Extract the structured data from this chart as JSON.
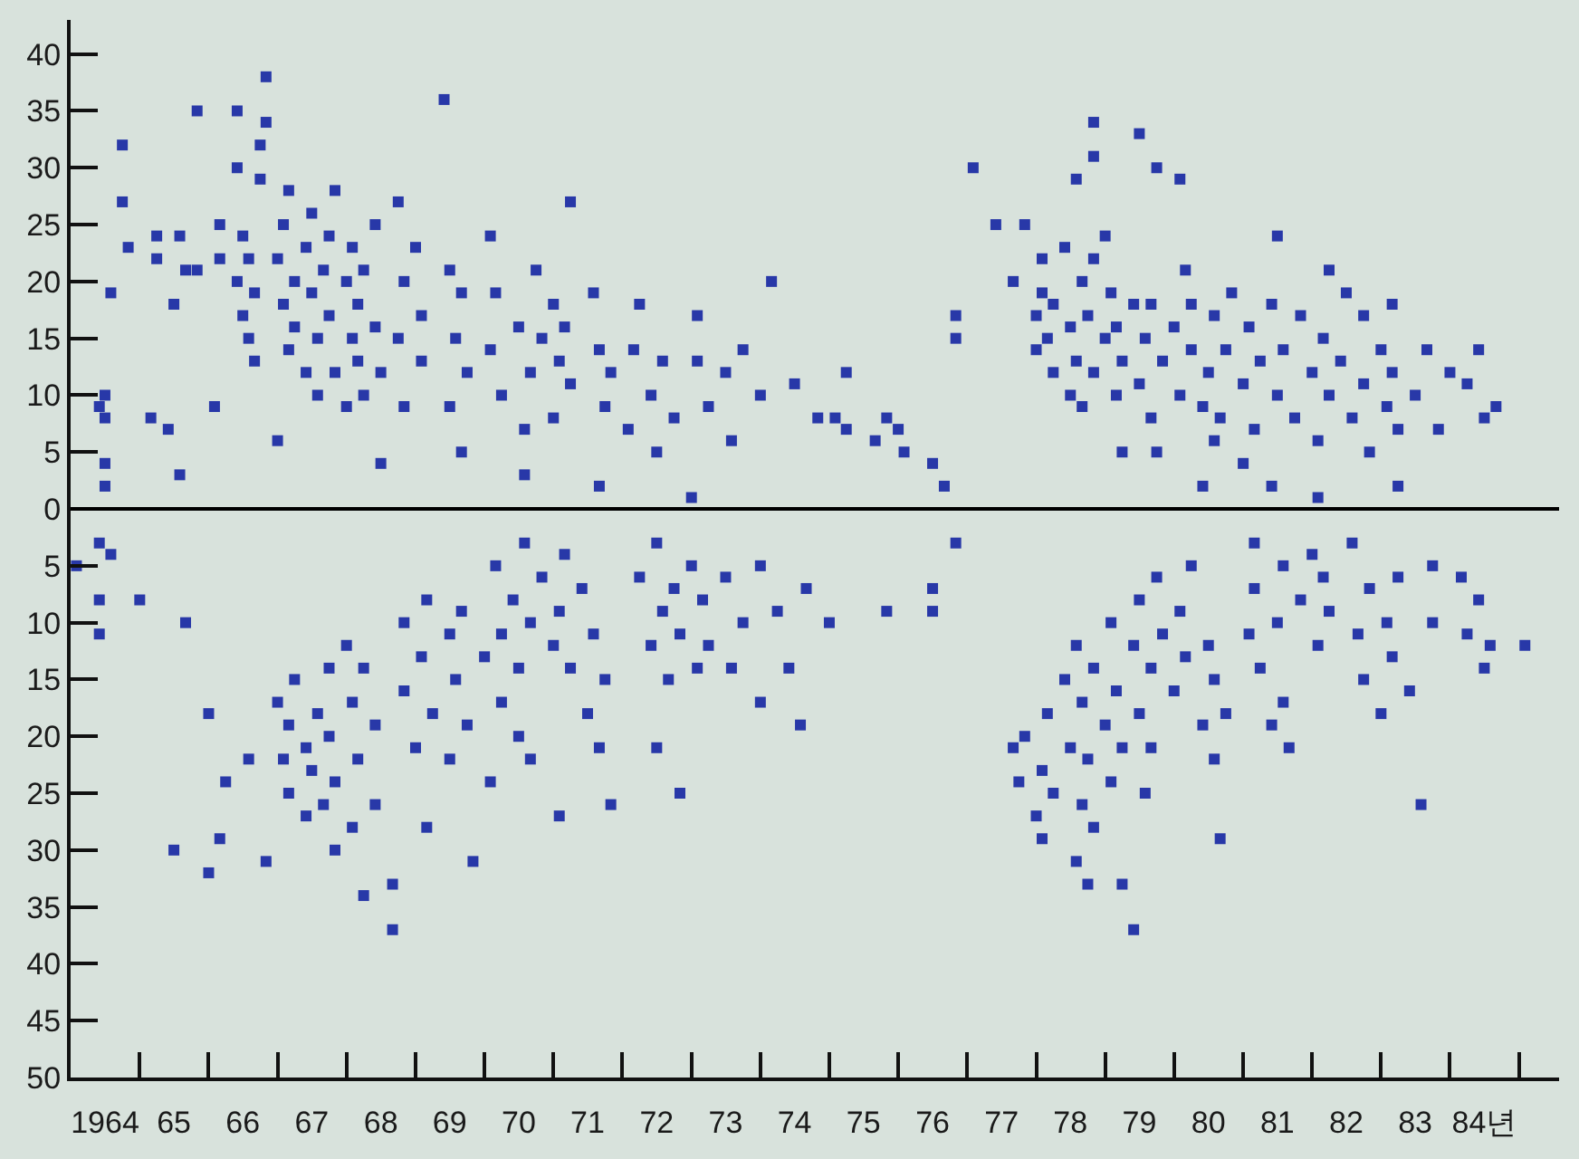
{
  "chart_data": {
    "type": "scatter",
    "marker": "square",
    "xlim": [
      "1964",
      "1985-08"
    ],
    "xticks": [
      {
        "value": "1964-07",
        "label": "1964"
      },
      {
        "value": "1965",
        "label": null
      },
      {
        "value": "1965-07",
        "label": "65"
      },
      {
        "value": "1966",
        "label": null
      },
      {
        "value": "1966-07",
        "label": "66"
      },
      {
        "value": "1967",
        "label": null
      },
      {
        "value": "1967-07",
        "label": "67"
      },
      {
        "value": "1968",
        "label": null
      },
      {
        "value": "1968-07",
        "label": "68"
      },
      {
        "value": "1969",
        "label": null
      },
      {
        "value": "1969-07",
        "label": "69"
      },
      {
        "value": "1970",
        "label": null
      },
      {
        "value": "1970-07",
        "label": "70"
      },
      {
        "value": "1971",
        "label": null
      },
      {
        "value": "1971-07",
        "label": "71"
      },
      {
        "value": "1972",
        "label": null
      },
      {
        "value": "1972-07",
        "label": "72"
      },
      {
        "value": "1973",
        "label": null
      },
      {
        "value": "1973-07",
        "label": "73"
      },
      {
        "value": "1974",
        "label": null
      },
      {
        "value": "1974-07",
        "label": "74"
      },
      {
        "value": "1975",
        "label": null
      },
      {
        "value": "1975-07",
        "label": "75"
      },
      {
        "value": "1976",
        "label": null
      },
      {
        "value": "1976-07",
        "label": "76"
      },
      {
        "value": "1977",
        "label": null
      },
      {
        "value": "1977-07",
        "label": "77"
      },
      {
        "value": "1978",
        "label": null
      },
      {
        "value": "1978-07",
        "label": "78"
      },
      {
        "value": "1979",
        "label": null
      },
      {
        "value": "1979-07",
        "label": "79"
      },
      {
        "value": "1980",
        "label": null
      },
      {
        "value": "1980-07",
        "label": "80"
      },
      {
        "value": "1981",
        "label": null
      },
      {
        "value": "1981-07",
        "label": "81"
      },
      {
        "value": "1982",
        "label": null
      },
      {
        "value": "1982-07",
        "label": "82"
      },
      {
        "value": "1983",
        "label": null
      },
      {
        "value": "1983-07",
        "label": "83"
      },
      {
        "value": "1984",
        "label": null
      },
      {
        "value": "1984-07",
        "label": "84년"
      },
      {
        "value": "1985",
        "label": null
      }
    ],
    "ylim": [
      -50,
      43
    ],
    "yticks": [
      40,
      35,
      30,
      25,
      20,
      15,
      10,
      5,
      0,
      {
        "value": -5,
        "label": "5"
      },
      {
        "value": -10,
        "label": "10"
      },
      {
        "value": -15,
        "label": "15"
      },
      {
        "value": -20,
        "label": "20"
      },
      {
        "value": -25,
        "label": "25"
      },
      {
        "value": -30,
        "label": "30"
      },
      {
        "value": -35,
        "label": "35"
      },
      {
        "value": -40,
        "label": "40"
      },
      {
        "value": -45,
        "label": "45"
      },
      {
        "value": -50,
        "label": "50"
      }
    ],
    "ref_lines": [
      {
        "axis": "y",
        "value": 0,
        "color": "#000000"
      }
    ],
    "series": [
      {
        "color": "#2838a8",
        "x": [
          "1964-06",
          "1964-07",
          "1964-07",
          "1964-07",
          "1964-07",
          "1964-08",
          "1964-10",
          "1964-10",
          "1964-11",
          "1965-03",
          "1965-04",
          "1965-04",
          "1965-06",
          "1965-07",
          "1965-08",
          "1965-08",
          "1965-09",
          "1965-11",
          "1965-11",
          "1966-02",
          "1966-03",
          "1966-03",
          "1966-06",
          "1966-06",
          "1966-06",
          "1966-07",
          "1966-07",
          "1966-08",
          "1966-08",
          "1966-09",
          "1966-09",
          "1966-10",
          "1966-10",
          "1966-11",
          "1966-11",
          "1967-01",
          "1967-01",
          "1967-02",
          "1967-02",
          "1967-03",
          "1967-03",
          "1967-04",
          "1967-04",
          "1967-06",
          "1967-06",
          "1967-07",
          "1967-07",
          "1967-08",
          "1967-08",
          "1967-09",
          "1967-10",
          "1967-10",
          "1967-11",
          "1967-11",
          "1968-01",
          "1968-01",
          "1968-02",
          "1968-02",
          "1968-03",
          "1968-03",
          "1968-04",
          "1968-04",
          "1968-06",
          "1968-06",
          "1968-07",
          "1968-07",
          "1968-10",
          "1968-10",
          "1968-11",
          "1968-11",
          "1969-01",
          "1969-02",
          "1969-02",
          "1969-06",
          "1969-07",
          "1969-07",
          "1969-08",
          "1969-09",
          "1969-09",
          "1969-10",
          "1970-02",
          "1970-02",
          "1970-03",
          "1970-04",
          "1970-07",
          "1970-08",
          "1970-08",
          "1970-09",
          "1970-10",
          "1970-11",
          "1971-01",
          "1971-01",
          "1971-02",
          "1971-03",
          "1971-04",
          "1971-04",
          "1971-08",
          "1971-09",
          "1971-09",
          "1971-10",
          "1971-11",
          "1972-02",
          "1972-03",
          "1972-04",
          "1972-06",
          "1972-07",
          "1972-08",
          "1972-10",
          "1973-01",
          "1973-02",
          "1973-02",
          "1973-04",
          "1973-07",
          "1973-08",
          "1973-10",
          "1974-01",
          "1974-03",
          "1974-07",
          "1974-11",
          "1975-02",
          "1975-04",
          "1975-04",
          "1975-09",
          "1975-11",
          "1976-01",
          "1976-02",
          "1976-07",
          "1976-09"
        ],
        "values": [
          9,
          8,
          10,
          2,
          4,
          19,
          27,
          32,
          23,
          8,
          22,
          24,
          7,
          18,
          3,
          24,
          21,
          35,
          21,
          9,
          22,
          25,
          30,
          35,
          20,
          17,
          24,
          22,
          15,
          19,
          13,
          32,
          29,
          34,
          38,
          6,
          22,
          18,
          25,
          14,
          28,
          20,
          16,
          12,
          23,
          19,
          26,
          10,
          15,
          21,
          24,
          17,
          28,
          12,
          20,
          9,
          15,
          23,
          18,
          13,
          21,
          10,
          25,
          16,
          4,
          12,
          27,
          15,
          20,
          9,
          23,
          17,
          13,
          36,
          21,
          9,
          15,
          5,
          19,
          12,
          24,
          14,
          19,
          10,
          16,
          7,
          3,
          12,
          21,
          15,
          18,
          8,
          13,
          16,
          27,
          11,
          19,
          14,
          2,
          9,
          12,
          7,
          14,
          18,
          10,
          5,
          13,
          8,
          1,
          17,
          13,
          9,
          12,
          6,
          14,
          10,
          20,
          11,
          8,
          8,
          7,
          12,
          6,
          8,
          7,
          5,
          4,
          2
        ]
      },
      {
        "color": "#2838a8",
        "x": [
          "1964-02",
          "1964-06",
          "1964-06",
          "1964-06",
          "1964-08",
          "1965-01",
          "1965-07",
          "1965-09",
          "1966-01",
          "1966-01",
          "1966-03",
          "1966-04",
          "1966-08",
          "1966-11",
          "1967-01",
          "1967-02",
          "1967-03",
          "1967-03",
          "1967-04",
          "1967-06",
          "1967-06",
          "1967-07",
          "1967-08",
          "1967-09",
          "1967-10",
          "1967-10",
          "1967-11",
          "1967-11",
          "1968-01",
          "1968-02",
          "1968-02",
          "1968-03",
          "1968-04",
          "1968-04",
          "1968-06",
          "1968-06",
          "1968-09",
          "1968-09",
          "1968-11",
          "1968-11",
          "1969-01",
          "1969-02",
          "1969-03",
          "1969-03",
          "1969-04",
          "1969-07",
          "1969-07",
          "1969-08",
          "1969-09",
          "1969-10",
          "1969-11",
          "1970-01",
          "1970-02",
          "1970-03",
          "1970-04",
          "1970-04",
          "1970-06",
          "1970-07",
          "1970-07",
          "1970-08",
          "1970-09",
          "1970-09",
          "1970-11",
          "1971-01",
          "1971-02",
          "1971-02",
          "1971-03",
          "1971-04",
          "1971-06",
          "1971-07",
          "1971-08",
          "1971-09",
          "1971-10",
          "1971-11",
          "1972-04",
          "1972-06",
          "1972-07",
          "1972-07",
          "1972-08",
          "1972-09",
          "1972-10",
          "1972-11",
          "1972-11",
          "1973-01",
          "1973-02",
          "1973-03",
          "1973-04",
          "1973-07",
          "1973-08",
          "1973-10",
          "1974-01",
          "1974-01",
          "1974-04",
          "1974-06",
          "1974-08",
          "1974-09",
          "1975-01",
          "1975-11",
          "1976-07",
          "1976-07",
          "1976-11"
        ],
        "values": [
          -5,
          -3,
          -8,
          -11,
          -4,
          -8,
          -30,
          -10,
          -18,
          -32,
          -29,
          -24,
          -22,
          -31,
          -17,
          -22,
          -25,
          -19,
          -15,
          -21,
          -27,
          -23,
          -18,
          -26,
          -14,
          -20,
          -30,
          -24,
          -12,
          -17,
          -28,
          -22,
          -34,
          -14,
          -19,
          -26,
          -33,
          -37,
          -10,
          -16,
          -21,
          -13,
          -28,
          -8,
          -18,
          -11,
          -22,
          -15,
          -9,
          -19,
          -31,
          -13,
          -24,
          -5,
          -11,
          -17,
          -8,
          -14,
          -20,
          -3,
          -10,
          -22,
          -6,
          -12,
          -27,
          -9,
          -4,
          -14,
          -7,
          -18,
          -11,
          -21,
          -15,
          -26,
          -6,
          -12,
          -21,
          -3,
          -9,
          -15,
          -7,
          -25,
          -11,
          -5,
          -14,
          -8,
          -12,
          -6,
          -14,
          -10,
          -17,
          -5,
          -9,
          -14,
          -19,
          -7,
          -10,
          -9,
          -9,
          -7,
          -3
        ]
      },
      {
        "color": "#2838a8",
        "x": [
          "1976-11",
          "1976-11",
          "1977-02",
          "1977-06",
          "1977-09",
          "1977-11",
          "1978-01",
          "1978-01",
          "1978-02",
          "1978-02",
          "1978-03",
          "1978-04",
          "1978-04",
          "1978-06",
          "1978-07",
          "1978-07",
          "1978-08",
          "1978-08",
          "1978-09",
          "1978-09",
          "1978-10",
          "1978-11",
          "1978-11",
          "1978-11",
          "1978-11",
          "1979-01",
          "1979-01",
          "1979-02",
          "1979-03",
          "1979-03",
          "1979-04",
          "1979-04",
          "1979-06",
          "1979-07",
          "1979-07",
          "1979-08",
          "1979-09",
          "1979-09",
          "1979-10",
          "1979-10",
          "1979-11",
          "1980-01",
          "1980-02",
          "1980-02",
          "1980-03",
          "1980-04",
          "1980-04",
          "1980-06",
          "1980-06",
          "1980-07",
          "1980-08",
          "1980-08",
          "1980-09",
          "1980-10",
          "1980-11",
          "1981-01",
          "1981-01",
          "1981-02",
          "1981-03",
          "1981-04",
          "1981-06",
          "1981-06",
          "1981-07",
          "1981-07",
          "1981-08",
          "1981-10",
          "1981-11",
          "1982-01",
          "1982-02",
          "1982-02",
          "1982-03",
          "1982-04",
          "1982-04",
          "1982-06",
          "1982-07",
          "1982-08",
          "1982-10",
          "1982-10",
          "1982-11",
          "1983-01",
          "1983-02",
          "1983-03",
          "1983-03",
          "1983-04",
          "1983-04",
          "1983-07",
          "1983-09",
          "1983-11",
          "1984-01",
          "1984-04",
          "1984-06",
          "1984-07",
          "1984-09"
        ],
        "values": [
          15,
          17,
          30,
          25,
          20,
          25,
          17,
          14,
          22,
          19,
          15,
          12,
          18,
          23,
          16,
          10,
          29,
          13,
          20,
          9,
          17,
          34,
          31,
          22,
          12,
          15,
          24,
          19,
          10,
          16,
          5,
          13,
          18,
          33,
          11,
          15,
          8,
          18,
          30,
          5,
          13,
          16,
          29,
          10,
          21,
          18,
          14,
          2,
          9,
          12,
          17,
          6,
          8,
          14,
          19,
          11,
          4,
          16,
          7,
          13,
          2,
          18,
          24,
          10,
          14,
          8,
          17,
          12,
          6,
          1,
          15,
          21,
          10,
          13,
          19,
          8,
          17,
          11,
          5,
          14,
          9,
          18,
          12,
          2,
          7,
          10,
          14,
          7,
          12,
          11,
          14,
          8,
          9
        ]
      },
      {
        "color": "#2838a8",
        "x": [
          "1977-09",
          "1977-10",
          "1977-11",
          "1978-01",
          "1978-02",
          "1978-02",
          "1978-03",
          "1978-04",
          "1978-06",
          "1978-07",
          "1978-08",
          "1978-08",
          "1978-09",
          "1978-09",
          "1978-10",
          "1978-10",
          "1978-11",
          "1978-11",
          "1979-01",
          "1979-02",
          "1979-02",
          "1979-03",
          "1979-04",
          "1979-04",
          "1979-06",
          "1979-06",
          "1979-07",
          "1979-07",
          "1979-08",
          "1979-09",
          "1979-09",
          "1979-10",
          "1979-11",
          "1980-01",
          "1980-02",
          "1980-03",
          "1980-04",
          "1980-06",
          "1980-07",
          "1980-08",
          "1980-08",
          "1980-09",
          "1980-10",
          "1981-02",
          "1981-03",
          "1981-03",
          "1981-04",
          "1981-06",
          "1981-07",
          "1981-08",
          "1981-08",
          "1981-09",
          "1981-11",
          "1982-01",
          "1982-02",
          "1982-03",
          "1982-04",
          "1982-08",
          "1982-09",
          "1982-10",
          "1982-11",
          "1983-01",
          "1983-02",
          "1983-03",
          "1983-04",
          "1983-06",
          "1983-08",
          "1983-10",
          "1983-10",
          "1984-03",
          "1984-04",
          "1984-06",
          "1984-07",
          "1984-08",
          "1985-02"
        ],
        "values": [
          -21,
          -24,
          -20,
          -27,
          -23,
          -29,
          -18,
          -25,
          -15,
          -21,
          -31,
          -12,
          -26,
          -17,
          -33,
          -22,
          -14,
          -28,
          -19,
          -24,
          -10,
          -16,
          -33,
          -21,
          -37,
          -12,
          -8,
          -18,
          -25,
          -14,
          -21,
          -6,
          -11,
          -16,
          -9,
          -13,
          -5,
          -19,
          -12,
          -22,
          -15,
          -29,
          -18,
          -11,
          -3,
          -7,
          -14,
          -19,
          -10,
          -5,
          -17,
          -21,
          -8,
          -4,
          -12,
          -6,
          -9,
          -3,
          -11,
          -15,
          -7,
          -18,
          -10,
          -13,
          -6,
          -16,
          -26,
          -5,
          -10,
          -6,
          -11,
          -8,
          -14,
          -12,
          -12
        ]
      }
    ]
  }
}
